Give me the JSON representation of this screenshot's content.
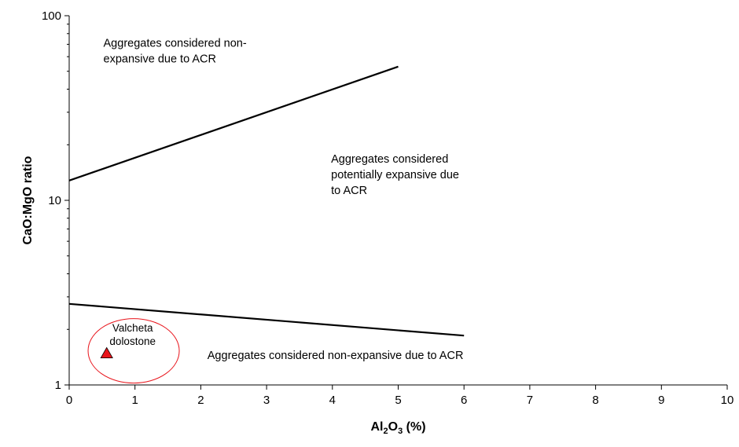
{
  "chart_data": {
    "type": "line",
    "xlabel": {
      "base": "Al",
      "sub1": "2",
      "mid": "O",
      "sub2": "3",
      "tail": " (%)"
    },
    "ylabel": "CaO:MgO ratio",
    "xlim": [
      0,
      10
    ],
    "ylim": [
      1,
      100
    ],
    "yscale": "log",
    "x_ticks": [
      "0",
      "1",
      "2",
      "3",
      "4",
      "5",
      "6",
      "7",
      "8",
      "9",
      "10"
    ],
    "y_ticks": [
      {
        "value": 1,
        "label": "1"
      },
      {
        "value": 10,
        "label": "10"
      },
      {
        "value": 100,
        "label": "100"
      }
    ],
    "grid": false,
    "series": [
      {
        "x": [
          0,
          5
        ],
        "y": [
          12.8,
          53
        ],
        "color": "#000000"
      },
      {
        "x": [
          0,
          6
        ],
        "y": [
          2.75,
          1.85
        ],
        "color": "#000000"
      }
    ],
    "points": [
      {
        "x": 0.57,
        "y": 1.48,
        "marker": "triangle",
        "color": "#e8141b",
        "label": [
          "Valcheta",
          "dolostone"
        ]
      }
    ],
    "annotations": [
      {
        "lines": [
          "Aggregates considered non-",
          "expansive due to ACR"
        ],
        "x": 0.52,
        "y": 68
      },
      {
        "lines": [
          "Aggregates considered",
          "potentially expansive due",
          "to ACR"
        ],
        "x": 3.98,
        "y": 16
      },
      {
        "lines": [
          "Aggregates considered non-expansive due to ACR"
        ],
        "x": 2.1,
        "y": 1.38
      }
    ],
    "highlight_ellipse": {
      "cx": 0.98,
      "cy": 1.53,
      "color": "#e8141b"
    }
  }
}
